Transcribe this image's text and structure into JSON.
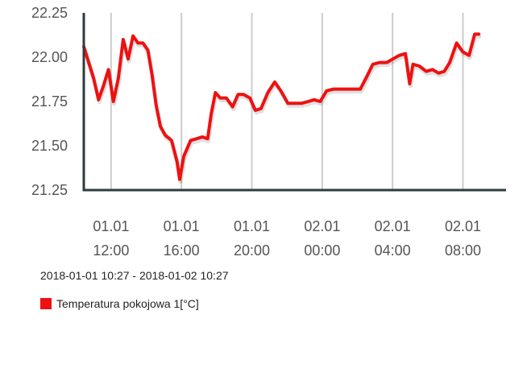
{
  "chart_data": {
    "type": "line",
    "title": "",
    "xlabel": "",
    "ylabel": "",
    "ylim": [
      21.25,
      22.25
    ],
    "yticks": [
      "22.25",
      "22.00",
      "21.75",
      "21.50",
      "21.25"
    ],
    "xlim_hours": [
      10.45,
      34.45
    ],
    "xticks": [
      {
        "date": "01.01",
        "time": "12:00"
      },
      {
        "date": "01.01",
        "time": "16:00"
      },
      {
        "date": "01.01",
        "time": "20:00"
      },
      {
        "date": "02.01",
        "time": "00:00"
      },
      {
        "date": "02.01",
        "time": "04:00"
      },
      {
        "date": "02.01",
        "time": "08:00"
      }
    ],
    "grid": "vertical",
    "legend_position": "bottom-left",
    "series": [
      {
        "name": "Temperatura pokojowa 1[°C]",
        "color": "#ee1111",
        "points": [
          [
            10.45,
            22.06
          ],
          [
            10.73,
            21.97
          ],
          [
            11.01,
            21.88
          ],
          [
            11.29,
            21.76
          ],
          [
            11.57,
            21.84
          ],
          [
            11.85,
            21.93
          ],
          [
            12.13,
            21.75
          ],
          [
            12.41,
            21.88
          ],
          [
            12.69,
            22.1
          ],
          [
            12.97,
            21.99
          ],
          [
            13.25,
            22.12
          ],
          [
            13.53,
            22.08
          ],
          [
            13.81,
            22.08
          ],
          [
            14.09,
            22.04
          ],
          [
            14.33,
            21.9
          ],
          [
            14.56,
            21.73
          ],
          [
            14.8,
            21.61
          ],
          [
            15.08,
            21.56
          ],
          [
            15.44,
            21.53
          ],
          [
            15.75,
            21.41
          ],
          [
            15.9,
            21.31
          ],
          [
            16.13,
            21.44
          ],
          [
            16.52,
            21.53
          ],
          [
            16.87,
            21.54
          ],
          [
            17.18,
            21.55
          ],
          [
            17.49,
            21.54
          ],
          [
            17.69,
            21.68
          ],
          [
            17.93,
            21.8
          ],
          [
            18.2,
            21.77
          ],
          [
            18.55,
            21.77
          ],
          [
            18.91,
            21.72
          ],
          [
            19.22,
            21.79
          ],
          [
            19.53,
            21.79
          ],
          [
            19.89,
            21.77
          ],
          [
            20.2,
            21.7
          ],
          [
            20.52,
            21.71
          ],
          [
            20.91,
            21.8
          ],
          [
            21.3,
            21.86
          ],
          [
            21.65,
            21.81
          ],
          [
            22.05,
            21.74
          ],
          [
            22.44,
            21.74
          ],
          [
            22.83,
            21.74
          ],
          [
            23.22,
            21.75
          ],
          [
            23.54,
            21.76
          ],
          [
            23.89,
            21.75
          ],
          [
            24.25,
            21.81
          ],
          [
            24.64,
            21.82
          ],
          [
            25.03,
            21.82
          ],
          [
            25.43,
            21.82
          ],
          [
            25.82,
            21.82
          ],
          [
            26.17,
            21.82
          ],
          [
            26.53,
            21.89
          ],
          [
            26.88,
            21.96
          ],
          [
            27.27,
            21.97
          ],
          [
            27.67,
            21.97
          ],
          [
            28.02,
            21.99
          ],
          [
            28.38,
            22.01
          ],
          [
            28.73,
            22.02
          ],
          [
            28.97,
            21.85
          ],
          [
            29.16,
            21.96
          ],
          [
            29.52,
            21.95
          ],
          [
            29.91,
            21.92
          ],
          [
            30.27,
            21.93
          ],
          [
            30.62,
            21.91
          ],
          [
            30.94,
            21.92
          ],
          [
            31.25,
            21.97
          ],
          [
            31.64,
            22.08
          ],
          [
            32.0,
            22.03
          ],
          [
            32.35,
            22.01
          ],
          [
            32.67,
            22.13
          ],
          [
            32.9,
            22.13
          ]
        ]
      }
    ]
  },
  "date_range": "2018-01-01 10:27 - 2018-01-02 10:27",
  "legend": {
    "label": "Temperatura pokojowa 1[°C]",
    "color": "#ee1111"
  }
}
